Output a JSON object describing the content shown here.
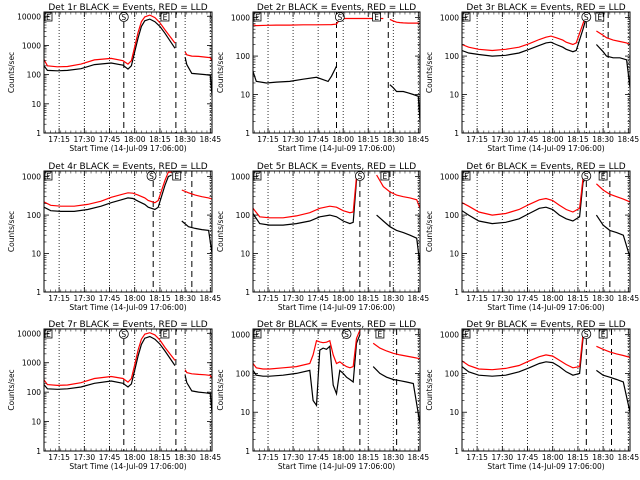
{
  "figure": {
    "x_tick_labels": [
      "17:15",
      "17:30",
      "17:45",
      "18:00",
      "18:15",
      "18:30",
      "18:45"
    ],
    "y_tick_labels": [
      "1",
      "10",
      "100",
      "1000",
      "10000"
    ],
    "colors": {
      "events": "#000000",
      "lld": "#ff0000",
      "axes": "#000000"
    },
    "markers": {
      "s_label": "S",
      "e_label": "E"
    }
  },
  "chart_data": [
    {
      "type": "line",
      "title": "Det 1r BLACK = Events, RED = LLD",
      "xlabel": "Start Time (14-Jul-09 17:06:00)",
      "ylabel": "Counts/sec",
      "x_range_min": [
        6,
        50
      ],
      "ylim": [
        1,
        14000
      ],
      "yscale": "log",
      "grid": "vertical dotted",
      "x_minutes": [
        0,
        2,
        8,
        14,
        22,
        30,
        40,
        47,
        50,
        52,
        54,
        56,
        58,
        60,
        63,
        66,
        69,
        72,
        78,
        80,
        84,
        85,
        88,
        92,
        96,
        99,
        100
      ],
      "series": [
        {
          "name": "BLACK = Events",
          "values": [
            200,
            140,
            135,
            140,
            160,
            220,
            250,
            210,
            155,
            200,
            600,
            1800,
            4500,
            7000,
            8000,
            6500,
            4500,
            2600,
            800,
            null,
            400,
            220,
            110,
            105,
            100,
            95,
            20
          ]
        },
        {
          "name": "RED = LLD",
          "values": [
            330,
            200,
            185,
            190,
            230,
            320,
            360,
            300,
            230,
            300,
            900,
            2800,
            6500,
            9500,
            11000,
            9000,
            6000,
            3400,
            1200,
            null,
            600,
            480,
            430,
            420,
            400,
            380,
            300
          ]
        }
      ],
      "vlines_dotted": [
        9,
        24,
        39,
        54,
        69,
        84,
        99
      ],
      "vlines_dashed": [
        47.5,
        78.5
      ],
      "s_marker_min": 47.5,
      "e_marker_min": 72
    },
    {
      "type": "line",
      "title": "Det 2r BLACK = Events, RED = LLD",
      "xlabel": "Start Time (14-Jul-09 17:06:00)",
      "ylabel": "Counts/sec",
      "x_range_min": [
        6,
        50
      ],
      "ylim": [
        1,
        1400
      ],
      "yscale": "log",
      "grid": "vertical dotted",
      "x_minutes": [
        0,
        2,
        8,
        14,
        22,
        30,
        38,
        45,
        47,
        50,
        52,
        55,
        58,
        60,
        64,
        68,
        72,
        76,
        78,
        80,
        82,
        84,
        86,
        88,
        90,
        93,
        96,
        99,
        100
      ],
      "series": [
        {
          "name": "BLACK = Events",
          "values": [
            40,
            22,
            20,
            21,
            22,
            25,
            28,
            22,
            30,
            55,
            null,
            null,
            null,
            null,
            null,
            null,
            null,
            null,
            null,
            null,
            18,
            15,
            12,
            12,
            12,
            11,
            10,
            9,
            2
          ]
        },
        {
          "name": "RED = LLD",
          "values": [
            650,
            620,
            630,
            640,
            640,
            650,
            650,
            655,
            660,
            680,
            900,
            950,
            950,
            950,
            950,
            950,
            950,
            950,
            950,
            null,
            900,
            820,
            760,
            740,
            730,
            720,
            720,
            720,
            700
          ]
        }
      ],
      "vlines_dotted": [
        9,
        24,
        39,
        54,
        69,
        84,
        99
      ],
      "vlines_dashed": [
        50,
        81
      ],
      "s_marker_min": 52,
      "e_marker_min": 74
    },
    {
      "type": "line",
      "title": "Det 3r BLACK = Events, RED = LLD",
      "xlabel": "Start Time (14-Jul-09 17:06:00)",
      "ylabel": "Counts/sec",
      "x_range_min": [
        6,
        50
      ],
      "ylim": [
        1,
        1400
      ],
      "yscale": "log",
      "grid": "vertical dotted",
      "x_minutes": [
        0,
        4,
        10,
        18,
        26,
        34,
        40,
        46,
        50,
        53,
        56,
        60,
        62,
        66,
        68,
        72,
        74,
        78,
        80,
        84,
        86,
        90,
        94,
        98,
        100
      ],
      "series": [
        {
          "name": "BLACK = Events",
          "values": [
            140,
            120,
            110,
            100,
            105,
            120,
            150,
            190,
            220,
            230,
            200,
            170,
            150,
            130,
            140,
            500,
            1000,
            null,
            200,
            130,
            100,
            90,
            90,
            80,
            15
          ]
        },
        {
          "name": "RED = LLD",
          "values": [
            200,
            170,
            150,
            140,
            150,
            170,
            210,
            270,
            310,
            330,
            300,
            260,
            230,
            200,
            220,
            700,
            1200,
            null,
            450,
            350,
            300,
            260,
            240,
            220,
            200
          ]
        }
      ],
      "vlines_dotted": [
        9,
        24,
        39,
        54,
        69,
        84,
        99
      ],
      "vlines_dashed": [
        74,
        87
      ],
      "s_marker_min": 74,
      "e_marker_min": 82
    },
    {
      "type": "line",
      "title": "Det 4r BLACK = Events, RED = LLD",
      "xlabel": "Start Time (14-Jul-09 17:06:00)",
      "ylabel": "Counts/sec",
      "x_range_min": [
        6,
        50
      ],
      "ylim": [
        1,
        1400
      ],
      "yscale": "log",
      "grid": "vertical dotted",
      "x_minutes": [
        0,
        4,
        10,
        18,
        26,
        34,
        40,
        46,
        50,
        53,
        56,
        60,
        62,
        66,
        68,
        72,
        74,
        76,
        78,
        80,
        82,
        86,
        90,
        94,
        98,
        100
      ],
      "series": [
        {
          "name": "BLACK = Events",
          "values": [
            160,
            130,
            125,
            125,
            140,
            170,
            210,
            250,
            280,
            270,
            230,
            190,
            160,
            140,
            160,
            600,
            1000,
            1100,
            null,
            null,
            70,
            50,
            45,
            42,
            40,
            10
          ]
        },
        {
          "name": "RED = LLD",
          "values": [
            220,
            180,
            170,
            170,
            190,
            230,
            290,
            340,
            380,
            370,
            330,
            280,
            240,
            210,
            240,
            800,
            1300,
            1300,
            null,
            null,
            450,
            380,
            330,
            300,
            280,
            260
          ]
        }
      ],
      "vlines_dotted": [
        9,
        24,
        39,
        54,
        69,
        84,
        99
      ],
      "vlines_dashed": [
        65,
        88
      ],
      "s_marker_min": 64,
      "e_marker_min": 79
    },
    {
      "type": "line",
      "title": "Det 5r BLACK = Events, RED = LLD",
      "xlabel": "Start Time (14-Jul-09 17:06:00)",
      "ylabel": "Counts/sec",
      "x_range_min": [
        6,
        50
      ],
      "ylim": [
        1,
        1400
      ],
      "yscale": "log",
      "grid": "vertical dotted",
      "x_minutes": [
        0,
        4,
        10,
        18,
        26,
        34,
        40,
        46,
        50,
        54,
        58,
        60,
        62,
        64,
        66,
        68,
        70,
        74,
        78,
        82,
        86,
        90,
        94,
        98,
        100
      ],
      "series": [
        {
          "name": "BLACK = Events",
          "values": [
            110,
            60,
            55,
            55,
            60,
            70,
            90,
            100,
            90,
            70,
            60,
            65,
            800,
            1100,
            null,
            null,
            null,
            100,
            70,
            50,
            40,
            35,
            30,
            25,
            5
          ]
        },
        {
          "name": "RED = LLD",
          "values": [
            150,
            90,
            85,
            85,
            95,
            115,
            150,
            170,
            160,
            130,
            115,
            120,
            1000,
            1300,
            null,
            null,
            null,
            1100,
            550,
            400,
            330,
            300,
            280,
            250,
            150
          ]
        }
      ],
      "vlines_dotted": [
        9,
        24,
        39,
        54,
        69,
        84,
        99
      ],
      "vlines_dashed": [
        64,
        82
      ],
      "s_marker_min": 64,
      "e_marker_min": 79
    },
    {
      "type": "line",
      "title": "Det 6r BLACK = Events, RED = LLD",
      "xlabel": "Start Time (14-Jul-09 17:06:00)",
      "ylabel": "Counts/sec",
      "x_range_min": [
        6,
        50
      ],
      "ylim": [
        1,
        1400
      ],
      "yscale": "log",
      "grid": "vertical dotted",
      "x_minutes": [
        0,
        4,
        10,
        18,
        26,
        34,
        40,
        46,
        50,
        54,
        58,
        62,
        66,
        70,
        72,
        74,
        76,
        78,
        80,
        84,
        88,
        92,
        96,
        100
      ],
      "series": [
        {
          "name": "BLACK = Events",
          "values": [
            130,
            100,
            70,
            60,
            65,
            80,
            110,
            150,
            160,
            140,
            100,
            80,
            70,
            90,
            700,
            1000,
            null,
            null,
            100,
            55,
            40,
            35,
            30,
            8
          ]
        },
        {
          "name": "RED = LLD",
          "values": [
            210,
            170,
            120,
            100,
            110,
            140,
            190,
            250,
            270,
            240,
            180,
            140,
            120,
            150,
            900,
            1300,
            null,
            null,
            650,
            450,
            350,
            300,
            260,
            220
          ]
        }
      ],
      "vlines_dotted": [
        9,
        24,
        39,
        54,
        69,
        84,
        99
      ],
      "vlines_dashed": [
        74,
        88
      ],
      "s_marker_min": 74,
      "e_marker_min": 84
    },
    {
      "type": "line",
      "title": "Det 7r BLACK = Events, RED = LLD",
      "xlabel": "Start Time (14-Jul-09 17:06:00)",
      "ylabel": "Counts/sec",
      "x_range_min": [
        6,
        50
      ],
      "ylim": [
        1,
        14000
      ],
      "yscale": "log",
      "grid": "vertical dotted",
      "x_minutes": [
        0,
        2,
        8,
        14,
        22,
        30,
        40,
        47,
        50,
        52,
        54,
        56,
        58,
        60,
        63,
        66,
        69,
        72,
        78,
        80,
        84,
        85,
        88,
        92,
        96,
        99,
        100
      ],
      "series": [
        {
          "name": "BLACK = Events",
          "values": [
            180,
            130,
            125,
            130,
            150,
            200,
            240,
            200,
            150,
            190,
            550,
            1700,
            4200,
            6800,
            7800,
            6300,
            4300,
            2500,
            800,
            null,
            380,
            210,
            110,
            100,
            95,
            90,
            20
          ]
        },
        {
          "name": "RED = LLD",
          "values": [
            260,
            180,
            170,
            175,
            210,
            290,
            340,
            290,
            220,
            290,
            850,
            2700,
            6300,
            9300,
            10500,
            8800,
            5900,
            3300,
            1200,
            null,
            580,
            460,
            420,
            400,
            390,
            370,
            300
          ]
        }
      ],
      "vlines_dotted": [
        9,
        24,
        39,
        54,
        69,
        84,
        99
      ],
      "vlines_dashed": [
        47.5,
        78.5
      ],
      "s_marker_min": 47.5,
      "e_marker_min": 72
    },
    {
      "type": "line",
      "title": "Det 8r BLACK = Events, RED = LLD",
      "xlabel": "Start Time (14-Jul-09 17:06:00)",
      "ylabel": "Counts/sec",
      "x_range_min": [
        6,
        50
      ],
      "ylim": [
        1,
        1400
      ],
      "yscale": "log",
      "grid": "vertical dotted",
      "x_minutes": [
        0,
        2,
        6,
        10,
        18,
        26,
        34,
        36,
        38,
        40,
        42,
        44,
        46,
        48,
        50,
        52,
        54,
        56,
        58,
        60,
        62,
        64,
        66,
        68,
        72,
        76,
        80,
        84,
        88,
        92,
        96,
        100
      ],
      "series": [
        {
          "name": "BLACK = Events",
          "values": [
            120,
            90,
            85,
            85,
            90,
            100,
            120,
            20,
            15,
            400,
            450,
            420,
            500,
            50,
            30,
            120,
            100,
            80,
            70,
            60,
            600,
            1000,
            null,
            null,
            150,
            100,
            80,
            70,
            65,
            60,
            55,
            5
          ]
        },
        {
          "name": "RED = LLD",
          "values": [
            180,
            140,
            130,
            130,
            140,
            150,
            180,
            300,
            700,
            650,
            620,
            640,
            700,
            300,
            180,
            200,
            170,
            150,
            140,
            150,
            800,
            1300,
            null,
            null,
            600,
            450,
            380,
            330,
            300,
            280,
            260,
            240
          ]
        }
      ],
      "vlines_dotted": [
        9,
        24,
        39,
        54,
        69,
        84,
        99
      ],
      "vlines_dashed": [
        64,
        86
      ],
      "s_marker_min": 56,
      "e_marker_min": 76
    },
    {
      "type": "line",
      "title": "Det 9r BLACK = Events, RED = LLD",
      "xlabel": "Start Time (14-Jul-09 17:06:00)",
      "ylabel": "Counts/sec",
      "x_range_min": [
        6,
        50
      ],
      "ylim": [
        1,
        1400
      ],
      "yscale": "log",
      "grid": "vertical dotted",
      "x_minutes": [
        0,
        4,
        10,
        18,
        26,
        34,
        40,
        46,
        50,
        54,
        58,
        62,
        66,
        70,
        72,
        74,
        76,
        78,
        80,
        84,
        88,
        92,
        96,
        100
      ],
      "series": [
        {
          "name": "BLACK = Events",
          "values": [
            150,
            110,
            90,
            85,
            90,
            110,
            140,
            180,
            200,
            190,
            150,
            110,
            90,
            100,
            800,
            1100,
            null,
            null,
            120,
            90,
            80,
            70,
            60,
            10
          ]
        },
        {
          "name": "RED = LLD",
          "values": [
            210,
            160,
            130,
            125,
            135,
            160,
            210,
            270,
            300,
            280,
            220,
            170,
            140,
            150,
            1000,
            1300,
            null,
            null,
            500,
            420,
            360,
            320,
            290,
            260
          ]
        }
      ],
      "vlines_dotted": [
        9,
        24,
        39,
        54,
        69,
        84,
        99
      ],
      "vlines_dashed": [
        74,
        89
      ],
      "s_marker_min": 74,
      "e_marker_min": 84
    }
  ]
}
